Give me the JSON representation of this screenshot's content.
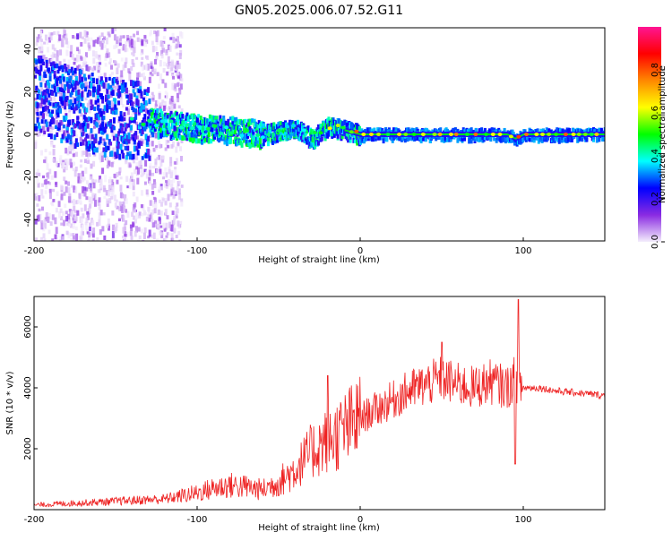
{
  "title": "GN05.2025.006.07.52.G11",
  "chart_data": [
    {
      "type": "heatmap",
      "xlabel": "Height of straight line (km)",
      "ylabel": "Frequency (Hz)",
      "xlim": [
        -200,
        150
      ],
      "ylim": [
        -50,
        50
      ],
      "xticks": [
        -200,
        -100,
        0,
        100
      ],
      "yticks": [
        -40,
        -20,
        0,
        20,
        40
      ],
      "grid": false,
      "colorbar": {
        "label": "Normalized spectral amplitude",
        "range": [
          0,
          1
        ],
        "ticks": [
          0.0,
          0.2,
          0.4,
          0.6,
          0.8
        ],
        "colors": [
          "#f4eefc",
          "#8a2be2",
          "#0000ff",
          "#00ffff",
          "#00ff00",
          "#ffff00",
          "#ff8800",
          "#ff0000",
          "#ff1493"
        ]
      },
      "ridge": [
        {
          "x": -200,
          "y": 20
        },
        {
          "x": -180,
          "y": 14
        },
        {
          "x": -160,
          "y": 9
        },
        {
          "x": -140,
          "y": 7
        },
        {
          "x": -120,
          "y": 5
        },
        {
          "x": -100,
          "y": 3
        },
        {
          "x": -80,
          "y": 2
        },
        {
          "x": -60,
          "y": 0
        },
        {
          "x": -40,
          "y": 3
        },
        {
          "x": -30,
          "y": -2
        },
        {
          "x": -20,
          "y": 4
        },
        {
          "x": -10,
          "y": 2
        },
        {
          "x": 0,
          "y": 0
        },
        {
          "x": 50,
          "y": 0
        },
        {
          "x": 90,
          "y": 0
        },
        {
          "x": 95,
          "y": -2
        },
        {
          "x": 100,
          "y": 0
        },
        {
          "x": 150,
          "y": 0
        }
      ]
    },
    {
      "type": "line",
      "xlabel": "Height of straight line (km)",
      "ylabel": "SNR (10 * v/v)",
      "xlim": [
        -200,
        150
      ],
      "ylim": [
        0,
        7000
      ],
      "xticks": [
        -200,
        -100,
        0,
        100
      ],
      "yticks": [
        2000,
        4000,
        6000
      ],
      "color": "#ee2222",
      "grid": false,
      "series": [
        {
          "x": [
            -200,
            -180,
            -160,
            -140,
            -120,
            -110,
            -100,
            -90,
            -80,
            -70,
            -60,
            -50,
            -40,
            -35,
            -30,
            -25,
            -20,
            -15,
            -10,
            -5,
            0,
            10,
            20,
            30,
            40,
            50,
            60,
            70,
            80,
            90,
            95,
            100,
            110,
            120,
            130,
            140,
            150
          ],
          "y": [
            150,
            200,
            250,
            300,
            350,
            450,
            550,
            700,
            800,
            750,
            650,
            900,
            1300,
            1600,
            1900,
            2100,
            2300,
            2400,
            2600,
            2800,
            3000,
            3300,
            3600,
            3900,
            4100,
            4300,
            4100,
            4000,
            4200,
            4000,
            4300,
            4000,
            4000,
            3900,
            3850,
            3800,
            3750
          ]
        }
      ],
      "spikes": [
        {
          "x": -20,
          "y": 4400
        },
        {
          "x": 50,
          "y": 5500
        },
        {
          "x": 97,
          "y": 6900
        },
        {
          "x": 95,
          "y": 1500
        }
      ]
    }
  ]
}
